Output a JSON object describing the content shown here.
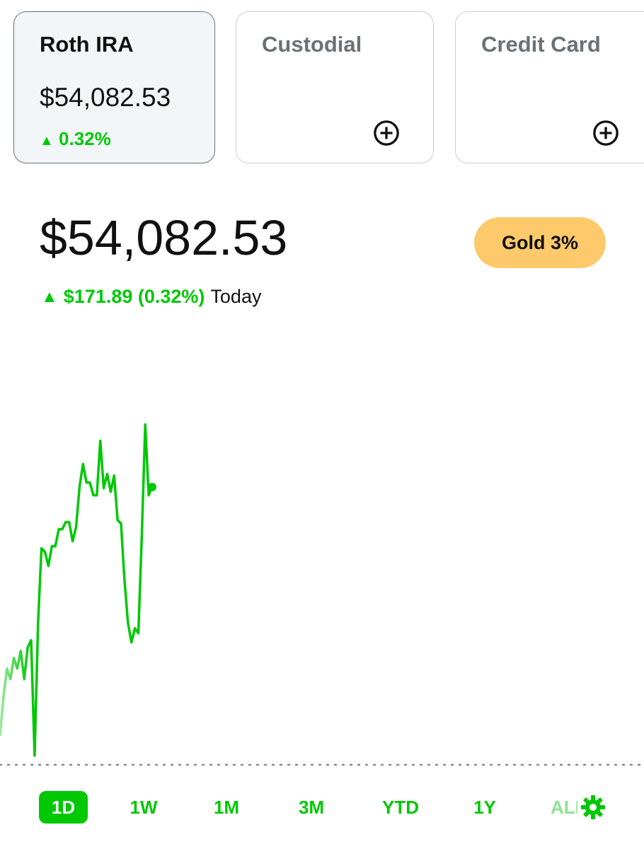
{
  "accounts": [
    {
      "name": "Roth IRA",
      "value": "$54,082.53",
      "change": "0.32%"
    },
    {
      "name": "Custodial"
    },
    {
      "name": "Credit Card"
    }
  ],
  "portfolio": {
    "value": "$54,082.53",
    "badge": "Gold 3%",
    "change": "$171.89 (0.32%)",
    "period": "Today"
  },
  "chart_data": {
    "type": "line",
    "color": "#00c805",
    "values": [
      53927.8,
      53952,
      53969.6,
      53963,
      53976.2,
      53969.6,
      53980.6,
      53963,
      53982.8,
      53987.2,
      53915.5,
      53998.2,
      54044.4,
      54042.2,
      54033.4,
      54045.7,
      54045.7,
      54056.3,
      54056.3,
      54060.7,
      54060.7,
      54048.8,
      54057.6,
      54082.7,
      54096.8,
      54085.3,
      54085.3,
      54077.4,
      54077.4,
      54111.3,
      54081.8,
      54090.6,
      54079.6,
      54089.7,
      54062,
      54059.8,
      54024.6,
      53998.2,
      53985.9,
      53994.7,
      53991.6,
      54051,
      54121.4,
      54077.4,
      54082.53
    ],
    "ylim": [
      53908,
      54183
    ]
  },
  "ranges": [
    "1D",
    "1W",
    "1M",
    "3M",
    "YTD",
    "1Y",
    "ALL"
  ]
}
